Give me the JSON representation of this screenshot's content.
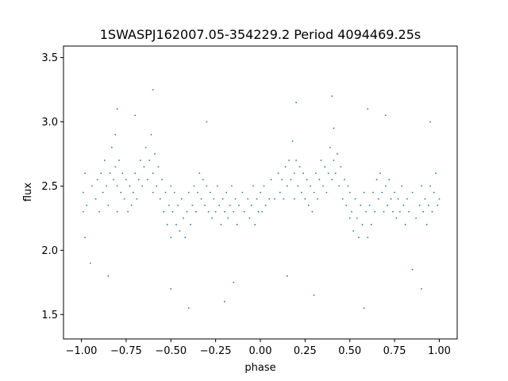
{
  "chart_data": {
    "type": "scatter",
    "title": "1SWASPJ162007.05-354229.2 Period 4094469.25s",
    "xlabel": "phase",
    "ylabel": "flux",
    "xlim": [
      -1.1,
      1.1
    ],
    "ylim": [
      1.31,
      3.59
    ],
    "grid": false,
    "legend": "none",
    "marker_color": "#1f77b4",
    "xticks": [
      {
        "value": -1.0,
        "label": "−1.00"
      },
      {
        "value": -0.75,
        "label": "−0.75"
      },
      {
        "value": -0.5,
        "label": "−0.50"
      },
      {
        "value": -0.25,
        "label": "−0.25"
      },
      {
        "value": 0.0,
        "label": "0.00"
      },
      {
        "value": 0.25,
        "label": "0.25"
      },
      {
        "value": 0.5,
        "label": "0.50"
      },
      {
        "value": 0.75,
        "label": "0.75"
      },
      {
        "value": 1.0,
        "label": "1.00"
      }
    ],
    "yticks": [
      {
        "value": 1.5,
        "label": "1.5"
      },
      {
        "value": 2.0,
        "label": "2.0"
      },
      {
        "value": 2.5,
        "label": "2.5"
      },
      {
        "value": 3.0,
        "label": "3.0"
      },
      {
        "value": 3.5,
        "label": "3.5"
      }
    ],
    "series": [
      {
        "points": [
          [
            -0.99,
            2.3
          ],
          [
            -0.99,
            2.45
          ],
          [
            -0.98,
            2.1
          ],
          [
            -0.98,
            2.6
          ],
          [
            -0.97,
            2.35
          ],
          [
            -0.94,
            2.5
          ],
          [
            -0.92,
            2.4
          ],
          [
            -0.91,
            2.55
          ],
          [
            -0.9,
            2.3
          ],
          [
            -0.89,
            2.6
          ],
          [
            -0.88,
            2.45
          ],
          [
            -0.87,
            2.7
          ],
          [
            -0.86,
            2.5
          ],
          [
            -0.85,
            2.35
          ],
          [
            -0.84,
            2.6
          ],
          [
            -0.83,
            2.8
          ],
          [
            -0.82,
            2.55
          ],
          [
            -0.81,
            2.9
          ],
          [
            -0.81,
            2.65
          ],
          [
            -0.8,
            2.5
          ],
          [
            -0.8,
            2.3
          ],
          [
            -0.79,
            2.7
          ],
          [
            -0.78,
            2.45
          ],
          [
            -0.77,
            2.6
          ],
          [
            -0.76,
            2.4
          ],
          [
            -0.75,
            2.55
          ],
          [
            -0.74,
            2.3
          ],
          [
            -0.73,
            2.5
          ],
          [
            -0.72,
            2.35
          ],
          [
            -0.71,
            2.45
          ],
          [
            -0.7,
            2.6
          ],
          [
            -0.69,
            2.4
          ],
          [
            -0.68,
            2.55
          ],
          [
            -0.67,
            2.7
          ],
          [
            -0.66,
            2.5
          ],
          [
            -0.65,
            2.65
          ],
          [
            -0.64,
            2.8
          ],
          [
            -0.63,
            2.55
          ],
          [
            -0.62,
            2.7
          ],
          [
            -0.61,
            2.9
          ],
          [
            -0.6,
            2.6
          ],
          [
            -0.6,
            2.45
          ],
          [
            -0.59,
            2.75
          ],
          [
            -0.58,
            2.5
          ],
          [
            -0.57,
            2.65
          ],
          [
            -0.56,
            2.4
          ],
          [
            -0.55,
            2.55
          ],
          [
            -0.54,
            2.3
          ],
          [
            -0.53,
            2.45
          ],
          [
            -0.52,
            2.2
          ],
          [
            -0.51,
            2.35
          ],
          [
            -0.5,
            2.1
          ],
          [
            -0.5,
            2.5
          ],
          [
            -0.49,
            2.3
          ],
          [
            -0.48,
            2.45
          ],
          [
            -0.47,
            2.2
          ],
          [
            -0.46,
            2.35
          ],
          [
            -0.45,
            2.15
          ],
          [
            -0.44,
            2.4
          ],
          [
            -0.43,
            2.25
          ],
          [
            -0.42,
            2.1
          ],
          [
            -0.41,
            2.3
          ],
          [
            -0.4,
            2.45
          ],
          [
            -0.39,
            2.2
          ],
          [
            -0.38,
            2.35
          ],
          [
            -0.37,
            2.5
          ],
          [
            -0.36,
            2.3
          ],
          [
            -0.35,
            2.45
          ],
          [
            -0.34,
            2.6
          ],
          [
            -0.33,
            2.4
          ],
          [
            -0.32,
            2.55
          ],
          [
            -0.31,
            2.35
          ],
          [
            -0.3,
            2.5
          ],
          [
            -0.29,
            2.3
          ],
          [
            -0.28,
            2.45
          ],
          [
            -0.27,
            2.25
          ],
          [
            -0.26,
            2.4
          ],
          [
            -0.25,
            2.3
          ],
          [
            -0.24,
            2.5
          ],
          [
            -0.23,
            2.35
          ],
          [
            -0.22,
            2.2
          ],
          [
            -0.21,
            2.4
          ],
          [
            -0.2,
            2.3
          ],
          [
            -0.19,
            2.45
          ],
          [
            -0.18,
            2.25
          ],
          [
            -0.17,
            2.35
          ],
          [
            -0.16,
            2.5
          ],
          [
            -0.15,
            2.3
          ],
          [
            -0.14,
            2.4
          ],
          [
            -0.13,
            2.2
          ],
          [
            -0.12,
            2.35
          ],
          [
            -0.1,
            2.45
          ],
          [
            -0.09,
            2.3
          ],
          [
            -0.07,
            2.4
          ],
          [
            -0.06,
            2.25
          ],
          [
            -0.05,
            2.35
          ],
          [
            -0.04,
            2.5
          ],
          [
            -0.03,
            2.2
          ],
          [
            -0.02,
            2.4
          ],
          [
            -0.01,
            2.3
          ],
          [
            0.0,
            2.45
          ],
          [
            0.01,
            2.3
          ],
          [
            0.02,
            2.5
          ],
          [
            0.03,
            2.35
          ],
          [
            0.05,
            2.4
          ],
          [
            0.06,
            2.55
          ],
          [
            0.08,
            2.4
          ],
          [
            0.1,
            2.6
          ],
          [
            0.11,
            2.45
          ],
          [
            0.12,
            2.55
          ],
          [
            0.13,
            2.4
          ],
          [
            0.14,
            2.65
          ],
          [
            0.15,
            2.5
          ],
          [
            0.16,
            2.7
          ],
          [
            0.17,
            2.55
          ],
          [
            0.18,
            2.85
          ],
          [
            0.19,
            2.6
          ],
          [
            0.19,
            2.4
          ],
          [
            0.2,
            2.7
          ],
          [
            0.21,
            2.5
          ],
          [
            0.22,
            2.65
          ],
          [
            0.23,
            2.45
          ],
          [
            0.24,
            2.6
          ],
          [
            0.25,
            2.4
          ],
          [
            0.26,
            2.55
          ],
          [
            0.27,
            2.35
          ],
          [
            0.28,
            2.5
          ],
          [
            0.29,
            2.3
          ],
          [
            0.3,
            2.45
          ],
          [
            0.31,
            2.6
          ],
          [
            0.32,
            2.4
          ],
          [
            0.33,
            2.55
          ],
          [
            0.34,
            2.7
          ],
          [
            0.35,
            2.5
          ],
          [
            0.36,
            2.65
          ],
          [
            0.37,
            2.45
          ],
          [
            0.38,
            2.6
          ],
          [
            0.39,
            2.8
          ],
          [
            0.4,
            2.55
          ],
          [
            0.41,
            2.7
          ],
          [
            0.41,
            2.95
          ],
          [
            0.42,
            2.6
          ],
          [
            0.43,
            2.75
          ],
          [
            0.44,
            2.5
          ],
          [
            0.45,
            2.65
          ],
          [
            0.46,
            2.4
          ],
          [
            0.47,
            2.55
          ],
          [
            0.48,
            2.35
          ],
          [
            0.49,
            2.5
          ],
          [
            0.5,
            2.25
          ],
          [
            0.5,
            2.45
          ],
          [
            0.51,
            2.3
          ],
          [
            0.52,
            2.15
          ],
          [
            0.53,
            2.4
          ],
          [
            0.54,
            2.25
          ],
          [
            0.55,
            2.1
          ],
          [
            0.56,
            2.35
          ],
          [
            0.57,
            2.2
          ],
          [
            0.58,
            2.45
          ],
          [
            0.59,
            2.3
          ],
          [
            0.6,
            2.1
          ],
          [
            0.61,
            2.35
          ],
          [
            0.62,
            2.2
          ],
          [
            0.63,
            2.45
          ],
          [
            0.64,
            2.3
          ],
          [
            0.65,
            2.55
          ],
          [
            0.66,
            2.4
          ],
          [
            0.67,
            2.6
          ],
          [
            0.68,
            2.45
          ],
          [
            0.69,
            2.3
          ],
          [
            0.7,
            2.5
          ],
          [
            0.71,
            2.35
          ],
          [
            0.72,
            2.55
          ],
          [
            0.73,
            2.4
          ],
          [
            0.74,
            2.3
          ],
          [
            0.75,
            2.45
          ],
          [
            0.76,
            2.25
          ],
          [
            0.77,
            2.4
          ],
          [
            0.78,
            2.3
          ],
          [
            0.79,
            2.5
          ],
          [
            0.8,
            2.35
          ],
          [
            0.81,
            2.2
          ],
          [
            0.82,
            2.4
          ],
          [
            0.83,
            2.3
          ],
          [
            0.85,
            2.45
          ],
          [
            0.87,
            2.25
          ],
          [
            0.89,
            2.35
          ],
          [
            0.9,
            2.5
          ],
          [
            0.91,
            2.3
          ],
          [
            0.92,
            2.4
          ],
          [
            0.93,
            2.2
          ],
          [
            0.94,
            2.35
          ],
          [
            0.95,
            2.5
          ],
          [
            0.96,
            2.3
          ],
          [
            0.97,
            2.45
          ],
          [
            0.98,
            2.6
          ],
          [
            0.99,
            2.35
          ],
          [
            1.0,
            2.4
          ],
          [
            -0.6,
            3.25
          ],
          [
            -0.4,
            1.55
          ],
          [
            0.4,
            3.2
          ],
          [
            0.58,
            1.55
          ],
          [
            -0.5,
            1.7
          ],
          [
            0.2,
            3.15
          ],
          [
            -0.8,
            3.1
          ],
          [
            0.9,
            1.7
          ],
          [
            -0.2,
            1.6
          ],
          [
            0.3,
            1.65
          ],
          [
            -0.7,
            3.05
          ],
          [
            0.7,
            3.05
          ],
          [
            -0.15,
            1.75
          ],
          [
            0.15,
            1.8
          ],
          [
            -0.95,
            1.9
          ],
          [
            0.95,
            3.0
          ],
          [
            -0.3,
            3.0
          ],
          [
            0.6,
            3.1
          ],
          [
            -0.85,
            1.8
          ],
          [
            0.85,
            1.85
          ]
        ]
      }
    ]
  }
}
